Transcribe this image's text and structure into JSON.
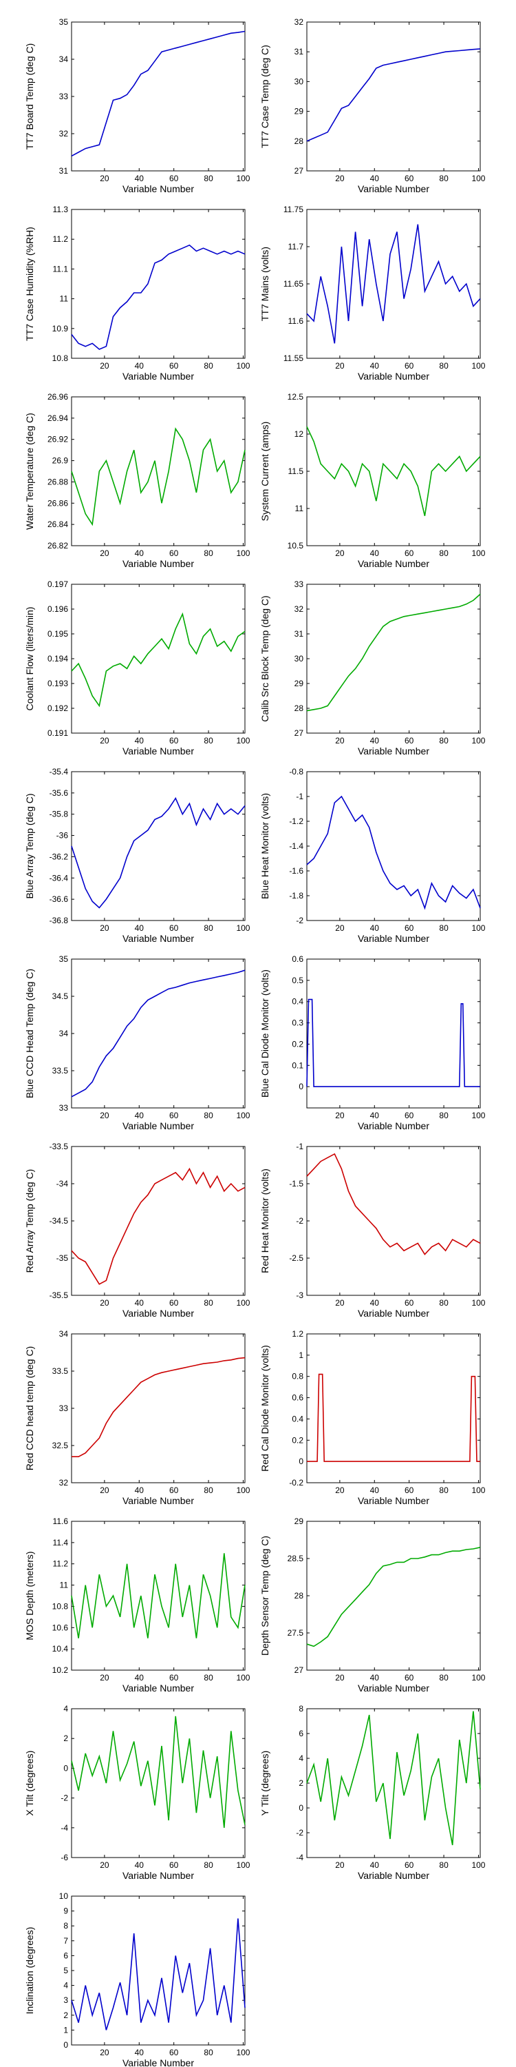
{
  "chart_data": [
    {
      "type": "line",
      "xlabel": "Variable Number",
      "ylabel": "TT7 Board Temp (deg C)",
      "color": "#0000cc",
      "xlim": [
        1,
        101
      ],
      "ylim": [
        31,
        35
      ],
      "yticks": [
        31,
        32,
        33,
        34,
        35
      ],
      "xticks": [
        20,
        40,
        60,
        80,
        100
      ],
      "y": [
        31.4,
        31.5,
        31.6,
        31.65,
        31.7,
        32.3,
        32.9,
        32.95,
        33.05,
        33.3,
        33.6,
        33.7,
        33.95,
        34.2,
        34.25,
        34.3,
        34.35,
        34.4,
        34.45,
        34.5,
        34.55,
        34.6,
        34.65,
        34.7,
        34.72,
        34.75
      ]
    },
    {
      "type": "line",
      "xlabel": "Variable Number",
      "ylabel": "TT7 Case Temp (deg C)",
      "color": "#0000cc",
      "xlim": [
        1,
        101
      ],
      "ylim": [
        27,
        32
      ],
      "yticks": [
        27,
        28,
        29,
        30,
        31,
        32
      ],
      "xticks": [
        20,
        40,
        60,
        80,
        100
      ],
      "y": [
        28.0,
        28.1,
        28.2,
        28.3,
        28.7,
        29.1,
        29.2,
        29.5,
        29.8,
        30.1,
        30.45,
        30.55,
        30.6,
        30.65,
        30.7,
        30.75,
        30.8,
        30.85,
        30.9,
        30.95,
        31.0,
        31.02,
        31.04,
        31.06,
        31.08,
        31.1
      ]
    },
    {
      "type": "line",
      "xlabel": "Variable Number",
      "ylabel": "TT7 Case Humidity (%RH)",
      "color": "#0000cc",
      "xlim": [
        1,
        101
      ],
      "ylim": [
        10.8,
        11.3
      ],
      "yticks": [
        10.8,
        10.9,
        11,
        11.1,
        11.2,
        11.3
      ],
      "xticks": [
        20,
        40,
        60,
        80,
        100
      ],
      "y": [
        10.88,
        10.85,
        10.84,
        10.85,
        10.83,
        10.84,
        10.94,
        10.97,
        10.99,
        11.02,
        11.02,
        11.05,
        11.12,
        11.13,
        11.15,
        11.16,
        11.17,
        11.18,
        11.16,
        11.17,
        11.16,
        11.15,
        11.16,
        11.15,
        11.16,
        11.15
      ]
    },
    {
      "type": "line",
      "xlabel": "Variable Number",
      "ylabel": "TT7 Mains  (volts)",
      "color": "#0000cc",
      "xlim": [
        1,
        101
      ],
      "ylim": [
        11.55,
        11.75
      ],
      "yticks": [
        11.55,
        11.6,
        11.65,
        11.7,
        11.75
      ],
      "xticks": [
        20,
        40,
        60,
        80,
        100
      ],
      "y": [
        11.61,
        11.6,
        11.66,
        11.62,
        11.57,
        11.7,
        11.6,
        11.72,
        11.62,
        11.71,
        11.65,
        11.6,
        11.69,
        11.72,
        11.63,
        11.67,
        11.73,
        11.64,
        11.66,
        11.68,
        11.65,
        11.66,
        11.64,
        11.65,
        11.62,
        11.63
      ]
    },
    {
      "type": "line",
      "xlabel": "Variable Number",
      "ylabel": "Water Temperature (deg C)",
      "color": "#00aa00",
      "xlim": [
        1,
        101
      ],
      "ylim": [
        26.82,
        26.96
      ],
      "yticks": [
        26.82,
        26.84,
        26.86,
        26.88,
        26.9,
        26.92,
        26.94,
        26.96
      ],
      "xticks": [
        20,
        40,
        60,
        80,
        100
      ],
      "y": [
        26.89,
        26.87,
        26.85,
        26.84,
        26.89,
        26.9,
        26.88,
        26.86,
        26.89,
        26.91,
        26.87,
        26.88,
        26.9,
        26.86,
        26.89,
        26.93,
        26.92,
        26.9,
        26.87,
        26.91,
        26.92,
        26.89,
        26.9,
        26.87,
        26.88,
        26.91
      ]
    },
    {
      "type": "line",
      "xlabel": "Variable Number",
      "ylabel": "System Current (amps)",
      "color": "#00aa00",
      "xlim": [
        1,
        101
      ],
      "ylim": [
        10.5,
        12.5
      ],
      "yticks": [
        10.5,
        11,
        11.5,
        12,
        12.5
      ],
      "xticks": [
        20,
        40,
        60,
        80,
        100
      ],
      "y": [
        12.1,
        11.9,
        11.6,
        11.5,
        11.4,
        11.6,
        11.5,
        11.3,
        11.6,
        11.5,
        11.1,
        11.6,
        11.5,
        11.4,
        11.6,
        11.5,
        11.3,
        10.9,
        11.5,
        11.6,
        11.5,
        11.6,
        11.7,
        11.5,
        11.6,
        11.7
      ]
    },
    {
      "type": "line",
      "xlabel": "Variable Number",
      "ylabel": "Coolant Flow (liters/min)",
      "color": "#00aa00",
      "xlim": [
        1,
        101
      ],
      "ylim": [
        0.191,
        0.197
      ],
      "yticks": [
        0.191,
        0.192,
        0.193,
        0.194,
        0.195,
        0.196,
        0.197
      ],
      "xticks": [
        20,
        40,
        60,
        80,
        100
      ],
      "y": [
        0.1935,
        0.1938,
        0.1932,
        0.1925,
        0.1921,
        0.1935,
        0.1937,
        0.1938,
        0.1936,
        0.1941,
        0.1938,
        0.1942,
        0.1945,
        0.1948,
        0.1944,
        0.1952,
        0.1958,
        0.1946,
        0.1942,
        0.1949,
        0.1952,
        0.1945,
        0.1947,
        0.1943,
        0.1949,
        0.1951
      ]
    },
    {
      "type": "line",
      "xlabel": "Variable Number",
      "ylabel": "Calib Src Block Temp (deg C)",
      "color": "#00aa00",
      "xlim": [
        1,
        101
      ],
      "ylim": [
        27,
        33
      ],
      "yticks": [
        27,
        28,
        29,
        30,
        31,
        32,
        33
      ],
      "xticks": [
        20,
        40,
        60,
        80,
        100
      ],
      "y": [
        27.9,
        27.95,
        28.0,
        28.1,
        28.5,
        28.9,
        29.3,
        29.6,
        30.0,
        30.5,
        30.9,
        31.3,
        31.5,
        31.6,
        31.7,
        31.75,
        31.8,
        31.85,
        31.9,
        31.95,
        32.0,
        32.05,
        32.1,
        32.2,
        32.35,
        32.6
      ]
    },
    {
      "type": "line",
      "xlabel": "Variable Number",
      "ylabel": "Blue Array Temp (deg C)",
      "color": "#0000cc",
      "xlim": [
        1,
        101
      ],
      "ylim": [
        -36.8,
        -35.4
      ],
      "yticks": [
        -36.8,
        -36.6,
        -36.4,
        -36.2,
        -36,
        -35.8,
        -35.6,
        -35.4
      ],
      "xticks": [
        20,
        40,
        60,
        80,
        100
      ],
      "y": [
        -36.1,
        -36.3,
        -36.5,
        -36.62,
        -36.68,
        -36.6,
        -36.5,
        -36.4,
        -36.2,
        -36.05,
        -36.0,
        -35.95,
        -35.85,
        -35.82,
        -35.75,
        -35.65,
        -35.8,
        -35.7,
        -35.9,
        -35.75,
        -35.85,
        -35.7,
        -35.8,
        -35.75,
        -35.8,
        -35.72
      ]
    },
    {
      "type": "line",
      "xlabel": "Variable Number",
      "ylabel": "Blue Heat Monitor  (volts)",
      "color": "#0000cc",
      "xlim": [
        1,
        101
      ],
      "ylim": [
        -2,
        -0.8
      ],
      "yticks": [
        -2,
        -1.8,
        -1.6,
        -1.4,
        -1.2,
        -1,
        -0.8
      ],
      "xticks": [
        20,
        40,
        60,
        80,
        100
      ],
      "y": [
        -1.55,
        -1.5,
        -1.4,
        -1.3,
        -1.05,
        -1.0,
        -1.1,
        -1.2,
        -1.15,
        -1.25,
        -1.45,
        -1.6,
        -1.7,
        -1.75,
        -1.72,
        -1.8,
        -1.75,
        -1.9,
        -1.7,
        -1.8,
        -1.85,
        -1.72,
        -1.78,
        -1.82,
        -1.75,
        -1.9
      ]
    },
    {
      "type": "line",
      "xlabel": "Variable Number",
      "ylabel": "Blue CCD Head Temp (deg C)",
      "color": "#0000cc",
      "xlim": [
        1,
        101
      ],
      "ylim": [
        33,
        35
      ],
      "yticks": [
        33,
        33.5,
        34,
        34.5,
        35
      ],
      "xticks": [
        20,
        40,
        60,
        80,
        100
      ],
      "y": [
        33.15,
        33.2,
        33.25,
        33.35,
        33.55,
        33.7,
        33.8,
        33.95,
        34.1,
        34.2,
        34.35,
        34.45,
        34.5,
        34.55,
        34.6,
        34.62,
        34.65,
        34.68,
        34.7,
        34.72,
        34.74,
        34.76,
        34.78,
        34.8,
        34.82,
        34.85
      ]
    },
    {
      "type": "line",
      "xlabel": "Variable Number",
      "ylabel": "Blue Cal Diode Monitor (volts)",
      "color": "#0000cc",
      "xlim": [
        1,
        101
      ],
      "ylim": [
        -0.1,
        0.6
      ],
      "yticks": [
        0,
        0.1,
        0.2,
        0.3,
        0.4,
        0.5,
        0.6
      ],
      "xticks": [
        20,
        40,
        60,
        80,
        100
      ],
      "x": [
        1,
        2,
        3,
        4,
        5,
        6,
        88,
        89,
        90,
        91,
        92,
        101
      ],
      "y": [
        0,
        0.41,
        0.41,
        0.41,
        0,
        0,
        0,
        0,
        0.39,
        0.39,
        0,
        0
      ]
    },
    {
      "type": "line",
      "xlabel": "Variable Number",
      "ylabel": "Red Array Temp (deg C)",
      "color": "#cc0000",
      "xlim": [
        1,
        101
      ],
      "ylim": [
        -35.5,
        -33.5
      ],
      "yticks": [
        -35.5,
        -35,
        -34.5,
        -34,
        -33.5
      ],
      "xticks": [
        20,
        40,
        60,
        80,
        100
      ],
      "y": [
        -34.9,
        -35.0,
        -35.05,
        -35.2,
        -35.35,
        -35.3,
        -35.0,
        -34.8,
        -34.6,
        -34.4,
        -34.25,
        -34.15,
        -34.0,
        -33.95,
        -33.9,
        -33.85,
        -33.95,
        -33.8,
        -34.0,
        -33.85,
        -34.05,
        -33.9,
        -34.1,
        -34.0,
        -34.1,
        -34.05
      ]
    },
    {
      "type": "line",
      "xlabel": "Variable Number",
      "ylabel": "Red Heat Monitor  (volts)",
      "color": "#cc0000",
      "xlim": [
        1,
        101
      ],
      "ylim": [
        -3,
        -1
      ],
      "yticks": [
        -3,
        -2.5,
        -2,
        -1.5,
        -1
      ],
      "xticks": [
        20,
        40,
        60,
        80,
        100
      ],
      "y": [
        -1.4,
        -1.3,
        -1.2,
        -1.15,
        -1.1,
        -1.3,
        -1.6,
        -1.8,
        -1.9,
        -2.0,
        -2.1,
        -2.25,
        -2.35,
        -2.3,
        -2.4,
        -2.35,
        -2.3,
        -2.45,
        -2.35,
        -2.3,
        -2.4,
        -2.25,
        -2.3,
        -2.35,
        -2.25,
        -2.3
      ]
    },
    {
      "type": "line",
      "xlabel": "Variable Number",
      "ylabel": "Red CCD head temp (deg C)",
      "color": "#cc0000",
      "xlim": [
        1,
        101
      ],
      "ylim": [
        32,
        34
      ],
      "yticks": [
        32,
        32.5,
        33,
        33.5,
        34
      ],
      "xticks": [
        20,
        40,
        60,
        80,
        100
      ],
      "y": [
        32.35,
        32.35,
        32.4,
        32.5,
        32.6,
        32.8,
        32.95,
        33.05,
        33.15,
        33.25,
        33.35,
        33.4,
        33.45,
        33.48,
        33.5,
        33.52,
        33.54,
        33.56,
        33.58,
        33.6,
        33.61,
        33.62,
        33.64,
        33.65,
        33.67,
        33.68
      ]
    },
    {
      "type": "line",
      "xlabel": "Variable Number",
      "ylabel": "Red Cal Diode Monitor  (volts)",
      "color": "#cc0000",
      "xlim": [
        1,
        101
      ],
      "ylim": [
        -0.2,
        1.2
      ],
      "yticks": [
        -0.2,
        0,
        0.2,
        0.4,
        0.6,
        0.8,
        1,
        1.2
      ],
      "xticks": [
        20,
        40,
        60,
        80,
        100
      ],
      "x": [
        1,
        7,
        8,
        9,
        10,
        11,
        12,
        95,
        96,
        97,
        98,
        99,
        101
      ],
      "y": [
        0,
        0,
        0.82,
        0.82,
        0.82,
        0,
        0,
        0,
        0.8,
        0.8,
        0.8,
        0,
        0
      ]
    },
    {
      "type": "line",
      "xlabel": "Variable Number",
      "ylabel": "MOS Depth  (meters)",
      "color": "#00aa00",
      "xlim": [
        1,
        101
      ],
      "ylim": [
        10.2,
        11.6
      ],
      "yticks": [
        10.2,
        10.4,
        10.6,
        10.8,
        11,
        11.2,
        11.4,
        11.6
      ],
      "xticks": [
        20,
        40,
        60,
        80,
        100
      ],
      "y": [
        10.9,
        10.5,
        11.0,
        10.6,
        11.1,
        10.8,
        10.9,
        10.7,
        11.2,
        10.6,
        10.9,
        10.5,
        11.1,
        10.8,
        10.6,
        11.2,
        10.7,
        11.0,
        10.5,
        11.1,
        10.9,
        10.6,
        11.3,
        10.7,
        10.6,
        11.0
      ]
    },
    {
      "type": "line",
      "xlabel": "Variable Number",
      "ylabel": "Depth Sensor Temp (deg C)",
      "color": "#00aa00",
      "xlim": [
        1,
        101
      ],
      "ylim": [
        27,
        29
      ],
      "yticks": [
        27,
        27.5,
        28,
        28.5,
        29
      ],
      "xticks": [
        20,
        40,
        60,
        80,
        100
      ],
      "y": [
        27.35,
        27.32,
        27.38,
        27.45,
        27.6,
        27.75,
        27.85,
        27.95,
        28.05,
        28.15,
        28.3,
        28.4,
        28.42,
        28.45,
        28.45,
        28.5,
        28.5,
        28.52,
        28.55,
        28.55,
        28.58,
        28.6,
        28.6,
        28.62,
        28.63,
        28.65
      ]
    },
    {
      "type": "line",
      "xlabel": "Variable Number",
      "ylabel": "X Tilt  (degrees)",
      "color": "#00aa00",
      "xlim": [
        1,
        101
      ],
      "ylim": [
        -6,
        4
      ],
      "yticks": [
        -6,
        -4,
        -2,
        0,
        2,
        4
      ],
      "xticks": [
        20,
        40,
        60,
        80,
        100
      ],
      "y": [
        0.5,
        -1.5,
        1.0,
        -0.5,
        0.8,
        -1.0,
        2.5,
        -0.8,
        0.3,
        1.8,
        -1.2,
        0.5,
        -2.5,
        1.5,
        -3.5,
        3.5,
        -1.0,
        2.0,
        -3.0,
        1.2,
        -2.0,
        0.8,
        -4.0,
        2.5,
        -1.5,
        -3.8
      ]
    },
    {
      "type": "line",
      "xlabel": "Variable Number",
      "ylabel": "Y Tilt  (degrees)",
      "color": "#00aa00",
      "xlim": [
        1,
        101
      ],
      "ylim": [
        -4,
        8
      ],
      "yticks": [
        -4,
        -2,
        0,
        2,
        4,
        6,
        8
      ],
      "xticks": [
        20,
        40,
        60,
        80,
        100
      ],
      "y": [
        2.0,
        3.5,
        0.5,
        4.0,
        -1.0,
        2.5,
        1.0,
        3.0,
        5.0,
        7.5,
        0.5,
        2.0,
        -2.5,
        4.5,
        1.0,
        3.0,
        6.0,
        -1.0,
        2.5,
        4.0,
        0.0,
        -3.0,
        5.5,
        2.0,
        7.8,
        1.5
      ]
    },
    {
      "type": "line",
      "xlabel": "Variable Number",
      "ylabel": "Inclination  (degrees)",
      "color": "#0000cc",
      "xlim": [
        1,
        101
      ],
      "ylim": [
        0,
        10
      ],
      "yticks": [
        0,
        1,
        2,
        3,
        4,
        5,
        6,
        7,
        8,
        9,
        10
      ],
      "xticks": [
        20,
        40,
        60,
        80,
        100
      ],
      "y": [
        3.0,
        1.5,
        4.0,
        2.0,
        3.5,
        1.0,
        2.5,
        4.2,
        2.0,
        7.5,
        1.5,
        3.0,
        2.0,
        4.5,
        1.5,
        6.0,
        3.5,
        5.5,
        2.0,
        3.0,
        6.5,
        2.0,
        4.0,
        1.5,
        8.5,
        2.5
      ]
    }
  ]
}
